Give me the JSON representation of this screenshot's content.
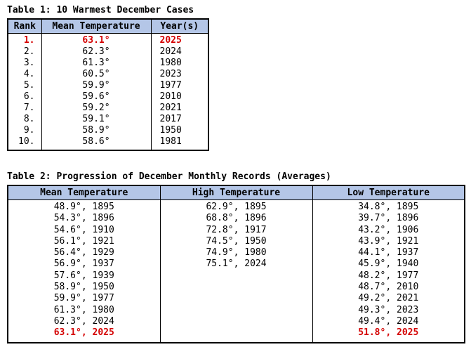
{
  "colors": {
    "header_bg": "#b4c6e7",
    "border": "#000000",
    "record_red": "#d40000",
    "text": "#000000",
    "background": "#ffffff"
  },
  "chart_data": [
    {
      "type": "table",
      "title": "Table 1: 10 Warmest December Cases",
      "columns": [
        "Rank",
        "Mean Temperature",
        "Year(s)"
      ],
      "rows": [
        [
          "1.",
          "63.1°",
          "2025"
        ],
        [
          "2.",
          "62.3°",
          "2024"
        ],
        [
          "3.",
          "61.3°",
          "1980"
        ],
        [
          "4.",
          "60.5°",
          "2023"
        ],
        [
          "5.",
          "59.9°",
          "1977"
        ],
        [
          "6.",
          "59.6°",
          "2010"
        ],
        [
          "7.",
          "59.2°",
          "2021"
        ],
        [
          "8.",
          "59.1°",
          "2017"
        ],
        [
          "9.",
          "58.9°",
          "1950"
        ],
        [
          "10.",
          "58.6°",
          "1981"
        ]
      ],
      "highlighted_row_index": 0
    },
    {
      "type": "table",
      "title": "Table 2: Progression of December Monthly Records (Averages)",
      "columns": [
        "Mean Temperature",
        "High Temperature",
        "Low Temperature"
      ],
      "cells": [
        [
          "48.9°, 1895",
          "54.3°, 1896",
          "54.6°, 1910",
          "56.1°, 1921",
          "56.4°, 1929",
          "56.9°, 1937",
          "57.6°, 1939",
          "58.9°, 1950",
          "59.9°, 1977",
          "61.3°, 1980",
          "62.3°, 2024",
          "63.1°, 2025"
        ],
        [
          "62.9°, 1895",
          "68.8°, 1896",
          "72.8°, 1917",
          "74.5°, 1950",
          "74.9°, 1980",
          "75.1°, 2024"
        ],
        [
          "34.8°, 1895",
          "39.7°, 1896",
          "43.2°, 1906",
          "43.9°, 1921",
          "44.1°, 1937",
          "45.9°, 1940",
          "48.2°, 1977",
          "48.7°, 2010",
          "49.2°, 2021",
          "49.3°, 2023",
          "49.4°, 2024",
          "51.8°, 2025"
        ]
      ],
      "highlighted_entries": [
        "63.1°, 2025",
        "51.8°, 2025"
      ]
    }
  ]
}
